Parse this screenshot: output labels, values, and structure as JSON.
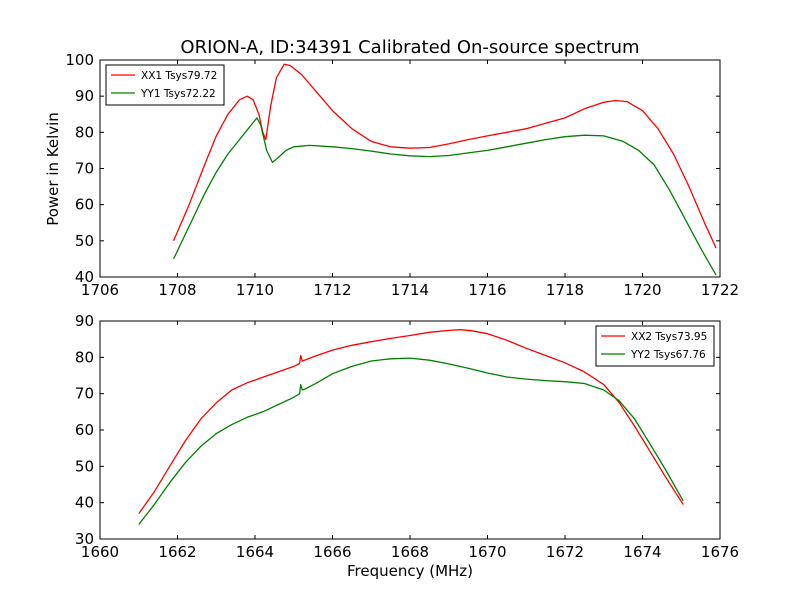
{
  "figure": {
    "title": "ORION-A, ID:34391 Calibrated On-source spectrum",
    "ylabel": "Power in Kelvin",
    "xlabel": "Frequency (MHz)"
  },
  "chart_data": [
    {
      "type": "line",
      "xlim": [
        1706,
        1722
      ],
      "ylim": [
        40,
        100
      ],
      "xticks": [
        1706,
        1708,
        1710,
        1712,
        1714,
        1716,
        1718,
        1720,
        1722
      ],
      "yticks": [
        40,
        50,
        60,
        70,
        80,
        90,
        100
      ],
      "xtick_labels": [
        "1706",
        "1708",
        "1710",
        "1712",
        "1714",
        "1716",
        "1718",
        "1720",
        "1722"
      ],
      "ytick_labels": [
        "40",
        "50",
        "60",
        "70",
        "80",
        "90",
        "100"
      ],
      "legend_position": "upper-left",
      "grid": false,
      "series": [
        {
          "name": "XX1 Tsys79.72",
          "color": "#ff0000",
          "x": [
            1707.9,
            1708.3,
            1708.7,
            1709.0,
            1709.3,
            1709.6,
            1709.8,
            1709.95,
            1710.1,
            1710.2,
            1710.28,
            1710.4,
            1710.55,
            1710.75,
            1710.9,
            1711.2,
            1711.6,
            1712.0,
            1712.5,
            1713.0,
            1713.5,
            1714.0,
            1714.5,
            1715.0,
            1715.5,
            1716.0,
            1716.5,
            1717.0,
            1717.5,
            1718.0,
            1718.5,
            1719.0,
            1719.3,
            1719.6,
            1720.0,
            1720.4,
            1720.8,
            1721.2,
            1721.6,
            1721.9
          ],
          "values": [
            50,
            60,
            71,
            79,
            85,
            89,
            90,
            89,
            85,
            80,
            78,
            87,
            95,
            98.8,
            98.5,
            96,
            91,
            86,
            81,
            77.5,
            76,
            75.6,
            75.8,
            76.8,
            78,
            79,
            80,
            81,
            82.5,
            84,
            86.5,
            88.3,
            88.8,
            88.5,
            86,
            81,
            74,
            65,
            55,
            48
          ]
        },
        {
          "name": "YY1 Tsys72.22",
          "color": "#008000",
          "x": [
            1707.9,
            1708.3,
            1708.7,
            1709.0,
            1709.3,
            1709.6,
            1709.9,
            1710.05,
            1710.15,
            1710.3,
            1710.45,
            1710.6,
            1710.8,
            1711.0,
            1711.4,
            1712.0,
            1712.5,
            1713.0,
            1713.5,
            1714.0,
            1714.5,
            1715.0,
            1715.5,
            1716.0,
            1716.5,
            1717.0,
            1717.5,
            1718.0,
            1718.5,
            1719.0,
            1719.5,
            1719.9,
            1720.3,
            1720.7,
            1721.1,
            1721.5,
            1721.9
          ],
          "values": [
            45,
            54,
            63,
            69,
            74,
            78,
            82,
            84,
            82,
            75,
            71.7,
            73,
            75,
            76,
            76.4,
            76,
            75.5,
            74.8,
            74,
            73.5,
            73.3,
            73.6,
            74.3,
            75,
            76,
            77,
            78,
            78.8,
            79.2,
            79,
            77.5,
            75,
            71,
            64,
            56,
            48,
            40.5
          ]
        }
      ]
    },
    {
      "type": "line",
      "xlim": [
        1660,
        1676
      ],
      "ylim": [
        30,
        90
      ],
      "xticks": [
        1660,
        1662,
        1664,
        1666,
        1668,
        1670,
        1672,
        1674,
        1676
      ],
      "yticks": [
        30,
        40,
        50,
        60,
        70,
        80,
        90
      ],
      "xtick_labels": [
        "1660",
        "1662",
        "1664",
        "1666",
        "1668",
        "1670",
        "1672",
        "1674",
        "1676"
      ],
      "ytick_labels": [
        "30",
        "40",
        "50",
        "60",
        "70",
        "80",
        "90"
      ],
      "legend_position": "upper-right",
      "grid": false,
      "series": [
        {
          "name": "XX2 Tsys73.95",
          "color": "#ff0000",
          "x": [
            1661.0,
            1661.4,
            1661.8,
            1662.2,
            1662.6,
            1663.0,
            1663.4,
            1663.8,
            1664.2,
            1664.6,
            1665.0,
            1665.15,
            1665.18,
            1665.22,
            1665.3,
            1665.6,
            1666.0,
            1666.5,
            1667.0,
            1667.5,
            1668.0,
            1668.5,
            1669.0,
            1669.3,
            1669.6,
            1670.0,
            1670.5,
            1671.0,
            1671.5,
            1672.0,
            1672.5,
            1673.0,
            1673.4,
            1673.8,
            1674.2,
            1674.6,
            1675.05
          ],
          "values": [
            37,
            43,
            50,
            57,
            63,
            67.5,
            71,
            73,
            74.5,
            76,
            77.5,
            78.3,
            80.5,
            79,
            79.3,
            80.5,
            82,
            83.3,
            84.3,
            85.2,
            86,
            86.9,
            87.4,
            87.6,
            87.3,
            86.5,
            84.7,
            82.5,
            80.5,
            78.5,
            76,
            72.5,
            67.5,
            61,
            54,
            47,
            39.5
          ]
        },
        {
          "name": "YY2 Tsys67.76",
          "color": "#008000",
          "x": [
            1661.0,
            1661.4,
            1661.8,
            1662.2,
            1662.6,
            1663.0,
            1663.4,
            1663.8,
            1664.2,
            1664.6,
            1665.0,
            1665.15,
            1665.18,
            1665.22,
            1665.3,
            1665.6,
            1666.0,
            1666.5,
            1667.0,
            1667.5,
            1668.0,
            1668.5,
            1669.0,
            1669.5,
            1670.0,
            1670.5,
            1671.0,
            1671.5,
            1672.0,
            1672.5,
            1673.0,
            1673.4,
            1673.8,
            1674.2,
            1674.6,
            1675.05
          ],
          "values": [
            34,
            39.5,
            45.5,
            51,
            55.5,
            59,
            61.5,
            63.5,
            65,
            67,
            69,
            70,
            72.5,
            71,
            71.3,
            73,
            75.5,
            77.5,
            79,
            79.6,
            79.8,
            79.2,
            78.2,
            77,
            75.7,
            74.6,
            74,
            73.6,
            73.3,
            72.8,
            71,
            68,
            63,
            56,
            49,
            40.5
          ]
        }
      ]
    }
  ]
}
